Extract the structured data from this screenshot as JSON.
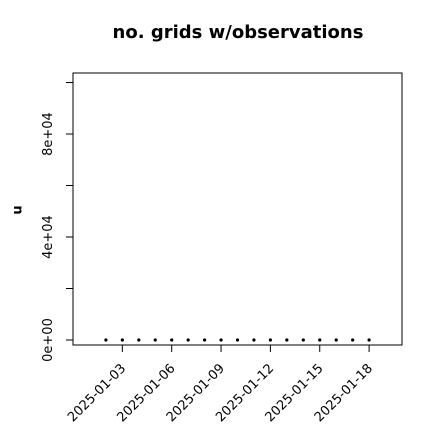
{
  "chart_data": {
    "type": "scatter",
    "title": "no. grids w/observations",
    "ylabel": "n",
    "x": [
      "2025-01-02",
      "2025-01-03",
      "2025-01-04",
      "2025-01-05",
      "2025-01-06",
      "2025-01-07",
      "2025-01-08",
      "2025-01-09",
      "2025-01-10",
      "2025-01-11",
      "2025-01-12",
      "2025-01-13",
      "2025-01-14",
      "2025-01-15",
      "2025-01-16",
      "2025-01-17",
      "2025-01-18"
    ],
    "values": [
      0,
      0,
      0,
      0,
      0,
      0,
      0,
      0,
      0,
      0,
      0,
      0,
      0,
      0,
      0,
      0,
      0
    ],
    "color": "#000000",
    "xlim": [
      "2024-12-31",
      "2025-01-20"
    ],
    "xticks": [
      "2025-01-03",
      "2025-01-06",
      "2025-01-09",
      "2025-01-12",
      "2025-01-15",
      "2025-01-18"
    ],
    "xtick_label_colors": [
      "#000000",
      "#000000",
      "#228b22",
      "#000000",
      "#000000",
      "#000000"
    ],
    "ylim": [
      -1940,
      103700
    ],
    "yticks": [
      {
        "value": 0,
        "label": "0e+00"
      },
      {
        "value": 40000,
        "label": "4e+04"
      },
      {
        "value": 80000,
        "label": "8e+04"
      }
    ],
    "yminor_ticks": [
      20000,
      60000,
      100000
    ],
    "grid": false
  }
}
